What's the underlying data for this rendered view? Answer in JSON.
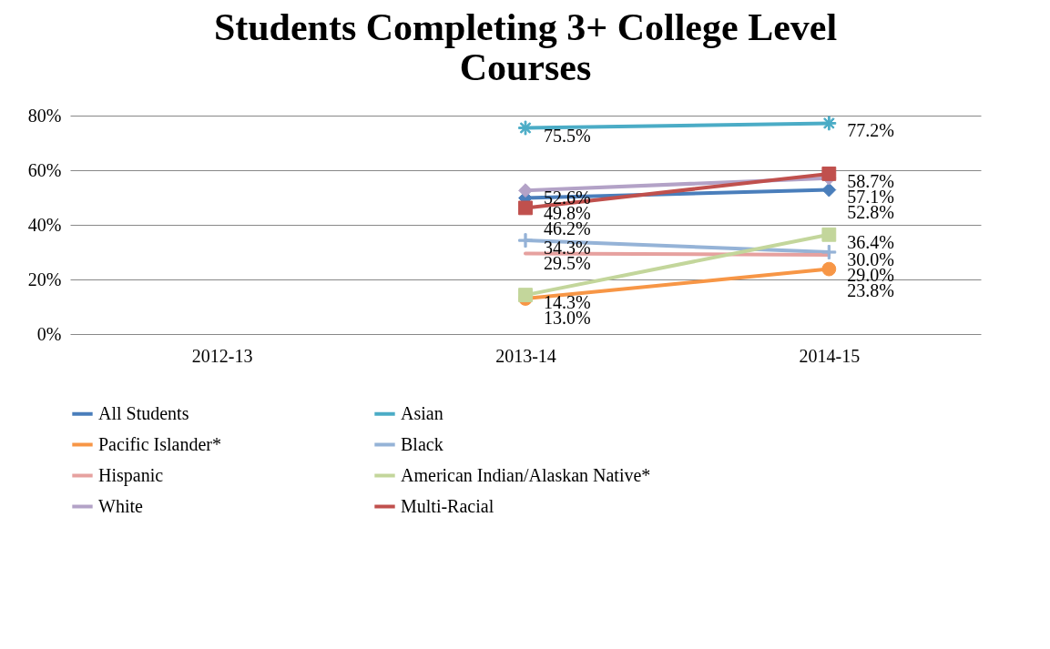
{
  "chart_data": {
    "type": "line",
    "title": "Students Completing 3+ College Level Courses",
    "categories": [
      "2012-13",
      "2013-14",
      "2014-15"
    ],
    "ylim": [
      0,
      80
    ],
    "yticks": [
      {
        "value": 0,
        "label": "0%"
      },
      {
        "value": 20,
        "label": "20%"
      },
      {
        "value": 40,
        "label": "40%"
      },
      {
        "value": 60,
        "label": "60%"
      },
      {
        "value": 80,
        "label": "80%"
      }
    ],
    "grid": "y",
    "legend": "bottom",
    "series": [
      {
        "name": "All Students",
        "color": "#4a7ebb",
        "marker": "diamond",
        "values": [
          null,
          49.8,
          52.8
        ],
        "value_labels": [
          null,
          "49.8%",
          "52.8%"
        ]
      },
      {
        "name": "Asian",
        "color": "#4bacc6",
        "marker": "star",
        "values": [
          null,
          75.5,
          77.2
        ],
        "value_labels": [
          null,
          "75.5%",
          "77.2%"
        ]
      },
      {
        "name": "Pacific Islander*",
        "color": "#f79646",
        "marker": "circle",
        "values": [
          null,
          13.0,
          23.8
        ],
        "value_labels": [
          null,
          "13.0%",
          "23.8%"
        ]
      },
      {
        "name": "Black",
        "color": "#95b3d7",
        "marker": "cross",
        "values": [
          null,
          34.3,
          30.0
        ],
        "value_labels": [
          null,
          "34.3%",
          "30.0%"
        ]
      },
      {
        "name": "Hispanic",
        "color": "#e6a19f",
        "marker": "none",
        "values": [
          null,
          29.5,
          29.0
        ],
        "value_labels": [
          null,
          "29.5%",
          "29.0%"
        ]
      },
      {
        "name": "American Indian/Alaskan Native*",
        "color": "#c3d69b",
        "marker": "square",
        "values": [
          null,
          14.3,
          36.4
        ],
        "value_labels": [
          null,
          "14.3%",
          "36.4%"
        ]
      },
      {
        "name": "White",
        "color": "#b3a2c7",
        "marker": "diamond",
        "values": [
          null,
          52.6,
          57.1
        ],
        "value_labels": [
          null,
          "52.6%",
          "57.1%"
        ]
      },
      {
        "name": "Multi-Racial",
        "color": "#c0504d",
        "marker": "square",
        "values": [
          null,
          46.2,
          58.7
        ],
        "value_labels": [
          null,
          "46.2%",
          "58.7%"
        ]
      }
    ]
  }
}
